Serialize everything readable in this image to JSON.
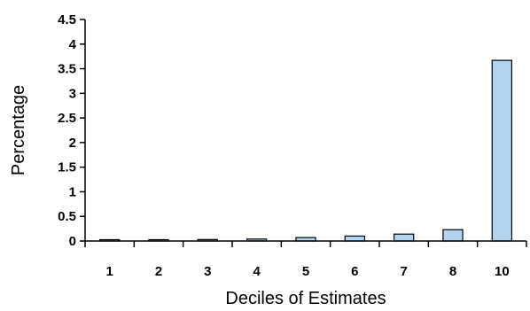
{
  "chart_data": {
    "type": "bar",
    "categories": [
      "1",
      "2",
      "3",
      "4",
      "5",
      "6",
      "7",
      "8",
      "10"
    ],
    "values": [
      0.01,
      0.02,
      0.03,
      0.04,
      0.07,
      0.1,
      0.14,
      0.23,
      3.67
    ],
    "xlabel": "Deciles of Estimates",
    "ylabel": "Percentage",
    "ylim": [
      0,
      4.5
    ],
    "yticks": [
      "0",
      "0.5",
      "1",
      "1.5",
      "2",
      "2.5",
      "3",
      "3.5",
      "4",
      "4.5"
    ],
    "grid": false,
    "legend": "none",
    "bar_color": "#b3d4ef"
  }
}
